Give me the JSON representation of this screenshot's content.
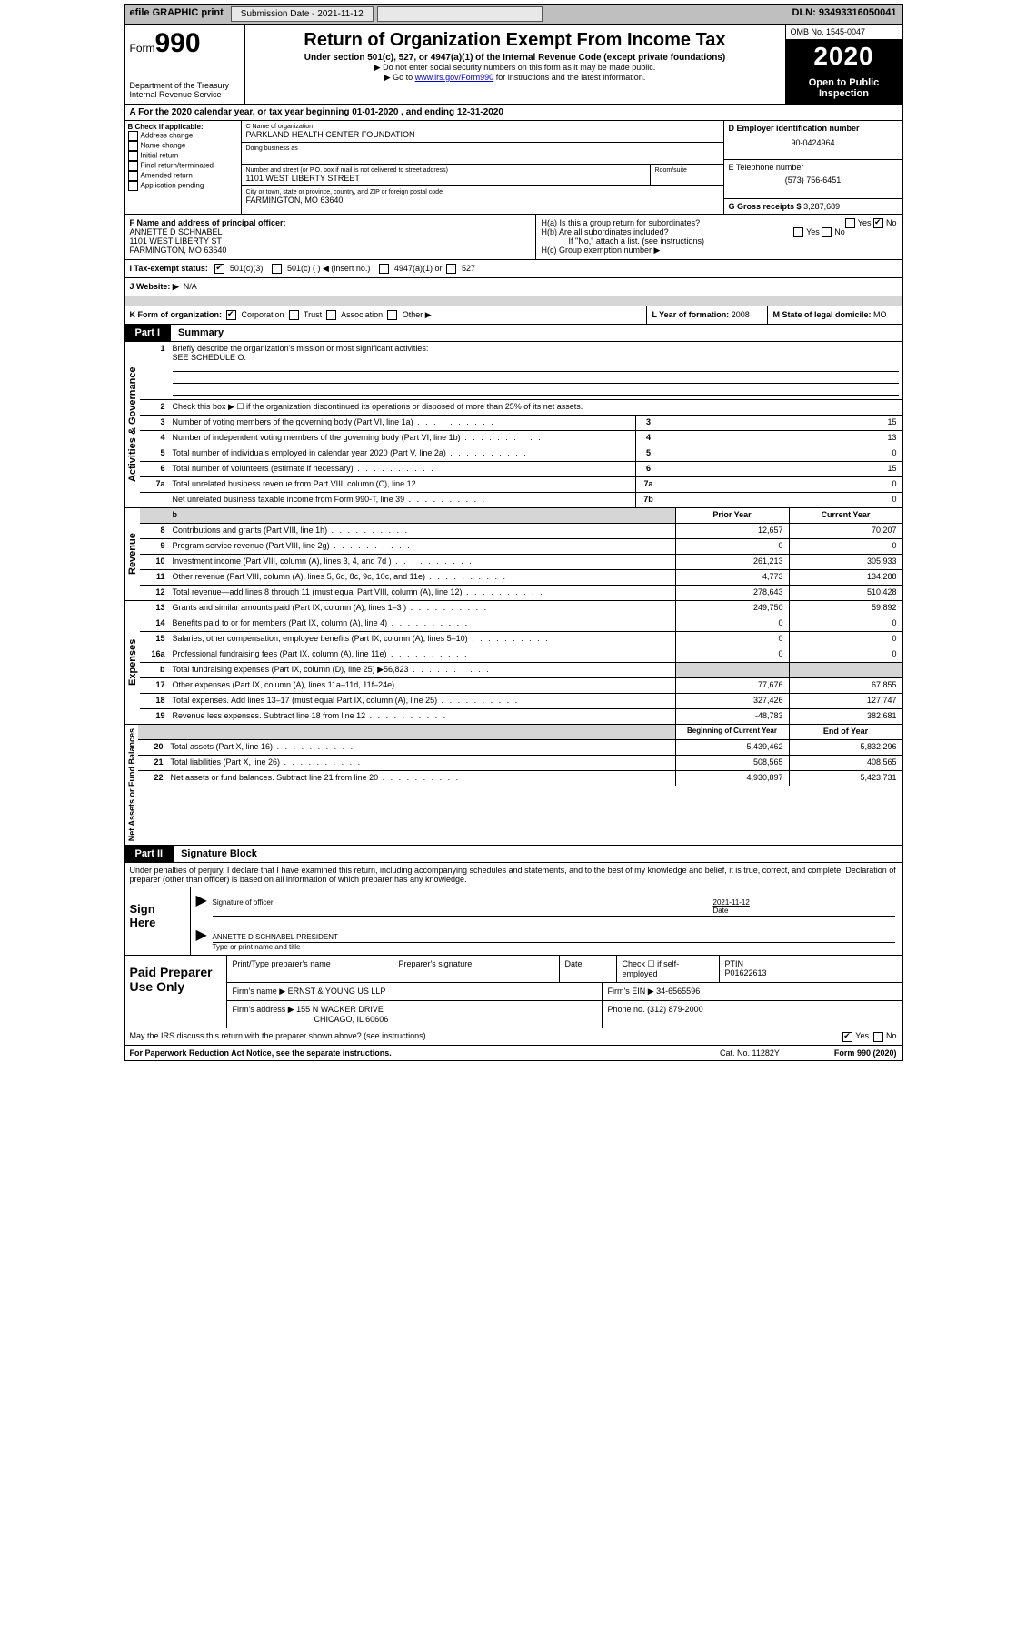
{
  "topbar": {
    "efile_label": "efile GRAPHIC print",
    "submission_label": "Submission Date - 2021-11-12",
    "dln_label": "DLN: 93493316050041"
  },
  "header": {
    "form_prefix": "Form",
    "form_number": "990",
    "dept": "Department of the Treasury Internal Revenue Service",
    "title": "Return of Organization Exempt From Income Tax",
    "subtitle": "Under section 501(c), 527, or 4947(a)(1) of the Internal Revenue Code (except private foundations)",
    "note1": "▶ Do not enter social security numbers on this form as it may be made public.",
    "note2_prefix": "▶ Go to ",
    "note2_link": "www.irs.gov/Form990",
    "note2_suffix": " for instructions and the latest information.",
    "omb": "OMB No. 1545-0047",
    "year": "2020",
    "public": "Open to Public Inspection"
  },
  "line_a": "For the 2020 calendar year, or tax year beginning 01-01-2020   , and ending 12-31-2020",
  "block_b": {
    "title": "B Check if applicable:",
    "opts": [
      "Address change",
      "Name change",
      "Initial return",
      "Final return/terminated",
      "Amended return",
      "Application pending"
    ]
  },
  "block_c": {
    "label": "C Name of organization",
    "name": "PARKLAND HEALTH CENTER FOUNDATION",
    "dba_label": "Doing business as",
    "addr_label": "Number and street (or P.O. box if mail is not delivered to street address)",
    "room_label": "Room/suite",
    "addr": "1101 WEST LIBERTY STREET",
    "city_label": "City or town, state or province, country, and ZIP or foreign postal code",
    "city": "FARMINGTON, MO  63640"
  },
  "block_d": {
    "label": "D Employer identification number",
    "value": "90-0424964"
  },
  "block_e": {
    "label": "E Telephone number",
    "value": "(573) 756-6451"
  },
  "block_g": {
    "label": "G Gross receipts $",
    "value": "3,287,689"
  },
  "block_f": {
    "label": "F  Name and address of principal officer:",
    "name": "ANNETTE D SCHNABEL",
    "addr1": "1101 WEST LIBERTY ST",
    "addr2": "FARMINGTON, MO  63640"
  },
  "block_h": {
    "ha": "H(a)  Is this a group return for subordinates?",
    "hb": "H(b)  Are all subordinates included?",
    "hb_note": "If \"No,\" attach a list. (see instructions)",
    "hc": "H(c)  Group exemption number ▶",
    "yes": "Yes",
    "no": "No"
  },
  "block_i": {
    "label": "I   Tax-exempt status:",
    "o1": "501(c)(3)",
    "o2": "501(c) (   ) ◀ (insert no.)",
    "o3": "4947(a)(1) or",
    "o4": "527"
  },
  "block_j": {
    "label": "J   Website: ▶",
    "value": "N/A"
  },
  "block_k": {
    "label": "K Form of organization:",
    "o1": "Corporation",
    "o2": "Trust",
    "o3": "Association",
    "o4": "Other ▶"
  },
  "block_l": {
    "label": "L Year of formation:",
    "value": "2008"
  },
  "block_m": {
    "label": "M State of legal domicile:",
    "value": "MO"
  },
  "part1": {
    "tag": "Part I",
    "title": "Summary",
    "side_labels": [
      "Activities & Governance",
      "Revenue",
      "Expenses",
      "Net Assets or Fund Balances"
    ],
    "q1": "Briefly describe the organization's mission or most significant activities:",
    "q1_val": "SEE SCHEDULE O.",
    "q2": "Check this box ▶ ☐  if the organization discontinued its operations or disposed of more than 25% of its net assets.",
    "rows_gov": [
      {
        "n": "3",
        "d": "Number of voting members of the governing body (Part VI, line 1a)",
        "c": "3",
        "v": "15"
      },
      {
        "n": "4",
        "d": "Number of independent voting members of the governing body (Part VI, line 1b)",
        "c": "4",
        "v": "13"
      },
      {
        "n": "5",
        "d": "Total number of individuals employed in calendar year 2020 (Part V, line 2a)",
        "c": "5",
        "v": "0"
      },
      {
        "n": "6",
        "d": "Total number of volunteers (estimate if necessary)",
        "c": "6",
        "v": "15"
      },
      {
        "n": "7a",
        "d": "Total unrelated business revenue from Part VIII, column (C), line 12",
        "c": "7a",
        "v": "0"
      },
      {
        "n": "",
        "d": "Net unrelated business taxable income from Form 990-T, line 39",
        "c": "7b",
        "v": "0"
      }
    ],
    "hdr_prior": "Prior Year",
    "hdr_curr": "Current Year",
    "rows_rev": [
      {
        "n": "8",
        "d": "Contributions and grants (Part VIII, line 1h)",
        "p": "12,657",
        "c": "70,207"
      },
      {
        "n": "9",
        "d": "Program service revenue (Part VIII, line 2g)",
        "p": "0",
        "c": "0"
      },
      {
        "n": "10",
        "d": "Investment income (Part VIII, column (A), lines 3, 4, and 7d )",
        "p": "261,213",
        "c": "305,933"
      },
      {
        "n": "11",
        "d": "Other revenue (Part VIII, column (A), lines 5, 6d, 8c, 9c, 10c, and 11e)",
        "p": "4,773",
        "c": "134,288"
      },
      {
        "n": "12",
        "d": "Total revenue—add lines 8 through 11 (must equal Part VIII, column (A), line 12)",
        "p": "278,643",
        "c": "510,428"
      }
    ],
    "rows_exp": [
      {
        "n": "13",
        "d": "Grants and similar amounts paid (Part IX, column (A), lines 1–3 )",
        "p": "249,750",
        "c": "59,892"
      },
      {
        "n": "14",
        "d": "Benefits paid to or for members (Part IX, column (A), line 4)",
        "p": "0",
        "c": "0"
      },
      {
        "n": "15",
        "d": "Salaries, other compensation, employee benefits (Part IX, column (A), lines 5–10)",
        "p": "0",
        "c": "0"
      },
      {
        "n": "16a",
        "d": "Professional fundraising fees (Part IX, column (A), line 11e)",
        "p": "0",
        "c": "0"
      },
      {
        "n": "b",
        "d": "Total fundraising expenses (Part IX, column (D), line 25) ▶56,823",
        "p": "",
        "c": "",
        "shade": true
      },
      {
        "n": "17",
        "d": "Other expenses (Part IX, column (A), lines 11a–11d, 11f–24e)",
        "p": "77,676",
        "c": "67,855"
      },
      {
        "n": "18",
        "d": "Total expenses. Add lines 13–17 (must equal Part IX, column (A), line 25)",
        "p": "327,426",
        "c": "127,747"
      },
      {
        "n": "19",
        "d": "Revenue less expenses. Subtract line 18 from line 12",
        "p": "-48,783",
        "c": "382,681"
      }
    ],
    "hdr_bcy": "Beginning of Current Year",
    "hdr_eoy": "End of Year",
    "rows_na": [
      {
        "n": "20",
        "d": "Total assets (Part X, line 16)",
        "p": "5,439,462",
        "c": "5,832,296"
      },
      {
        "n": "21",
        "d": "Total liabilities (Part X, line 26)",
        "p": "508,565",
        "c": "408,565"
      },
      {
        "n": "22",
        "d": "Net assets or fund balances. Subtract line 21 from line 20",
        "p": "4,930,897",
        "c": "5,423,731"
      }
    ]
  },
  "part2": {
    "tag": "Part II",
    "title": "Signature Block",
    "decl": "Under penalties of perjury, I declare that I have examined this return, including accompanying schedules and statements, and to the best of my knowledge and belief, it is true, correct, and complete. Declaration of preparer (other than officer) is based on all information of which preparer has any knowledge."
  },
  "sign": {
    "label": "Sign Here",
    "sig_of_officer": "Signature of officer",
    "date_label": "Date",
    "date": "2021-11-12",
    "name": "ANNETTE D SCHNABEL  PRESIDENT",
    "name_label": "Type or print name and title"
  },
  "prep": {
    "label": "Paid Preparer Use Only",
    "r1": {
      "c1": "Print/Type preparer's name",
      "c2": "Preparer's signature",
      "c3": "Date",
      "c4": "Check ☐ if self-employed",
      "c5l": "PTIN",
      "c5": "P01622613"
    },
    "r2": {
      "l": "Firm's name    ▶",
      "v": "ERNST & YOUNG US LLP",
      "rl": "Firm's EIN ▶",
      "rv": "34-6565596"
    },
    "r3": {
      "l": "Firm's address ▶",
      "v1": "155 N WACKER DRIVE",
      "v2": "CHICAGO, IL  60606",
      "rl": "Phone no.",
      "rv": "(312) 879-2000"
    }
  },
  "footer": {
    "discuss": "May the IRS discuss this return with the preparer shown above? (see instructions)",
    "yes": "Yes",
    "no": "No",
    "pra": "For Paperwork Reduction Act Notice, see the separate instructions.",
    "cat": "Cat. No. 11282Y",
    "form": "Form 990 (2020)"
  }
}
